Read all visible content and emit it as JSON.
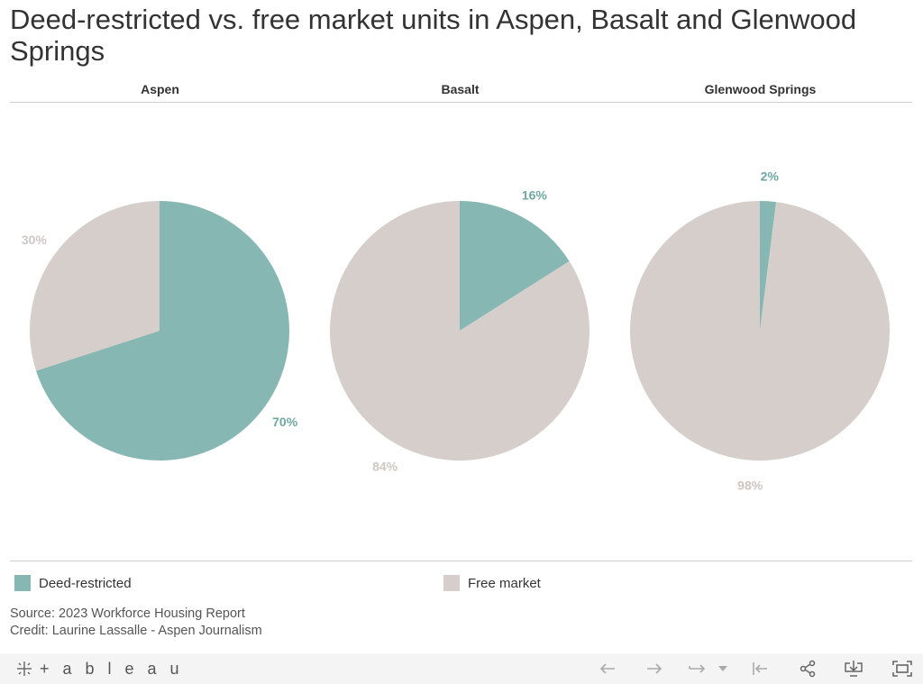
{
  "title": "Deed-restricted vs. free market units in Aspen, Basalt and Glenwood Springs",
  "colors": {
    "deed_restricted": "#86b7b2",
    "free_market": "#d5cecb"
  },
  "chart_data": [
    {
      "type": "pie",
      "title": "Aspen",
      "categories": [
        "Deed-restricted",
        "Free market"
      ],
      "values": [
        70,
        30
      ],
      "labels": [
        "70%",
        "30%"
      ]
    },
    {
      "type": "pie",
      "title": "Basalt",
      "categories": [
        "Deed-restricted",
        "Free market"
      ],
      "values": [
        16,
        84
      ],
      "labels": [
        "16%",
        "84%"
      ]
    },
    {
      "type": "pie",
      "title": "Glenwood Springs",
      "categories": [
        "Deed-restricted",
        "Free market"
      ],
      "values": [
        2,
        98
      ],
      "labels": [
        "2%",
        "98%"
      ]
    }
  ],
  "legend": [
    {
      "label": "Deed-restricted",
      "color": "#86b7b2"
    },
    {
      "label": "Free market",
      "color": "#d5cecb"
    }
  ],
  "source_line": "Source: 2023 Workforce Housing Report",
  "credit_line": "Credit: Laurine Lassalle - Aspen Journalism",
  "footer": {
    "brand": "+ a b l e a u",
    "icons": [
      "back-icon",
      "forward-icon",
      "revert-icon",
      "dropdown-icon",
      "reset-icon",
      "share-icon",
      "download-icon",
      "fullscreen-icon"
    ]
  }
}
